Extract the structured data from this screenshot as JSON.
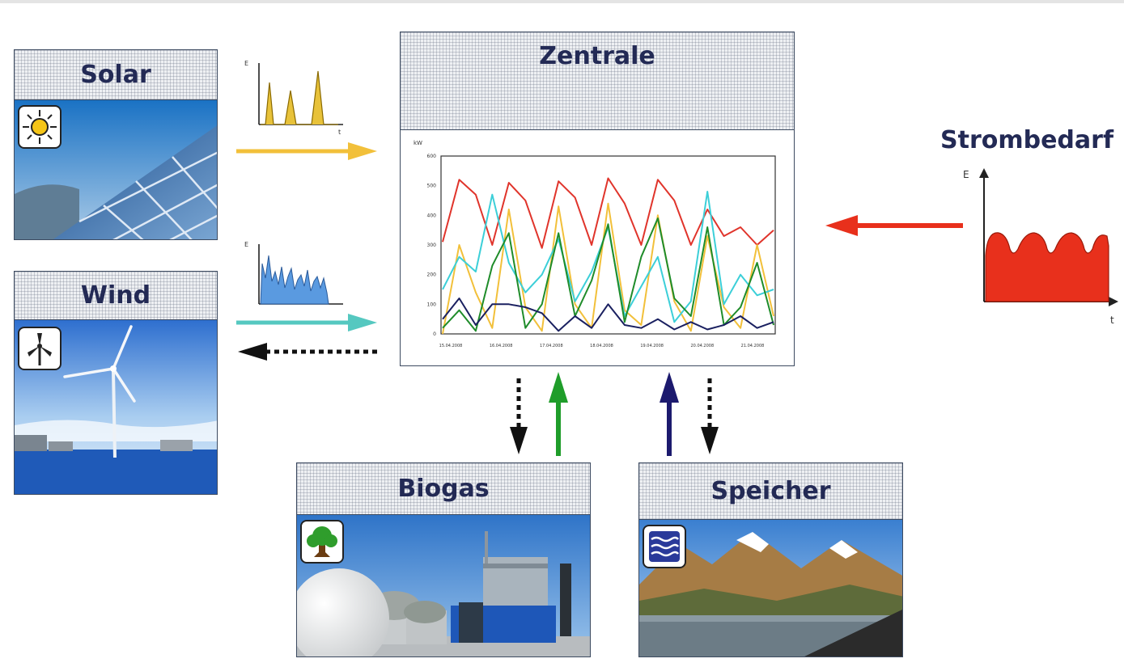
{
  "nodes": {
    "solar": {
      "label": "Solar",
      "icon": "sun-icon"
    },
    "wind": {
      "label": "Wind",
      "icon": "wind-turbine-icon"
    },
    "zentrale": {
      "label": "Zentrale"
    },
    "biogas": {
      "label": "Biogas",
      "icon": "tree-icon"
    },
    "speicher": {
      "label": "Speicher",
      "icon": "water-waves-icon"
    },
    "strombedarf": {
      "label": "Strombedarf",
      "axis_y": "E",
      "axis_x": "t"
    }
  },
  "mini_charts": {
    "solar": {
      "type": "area",
      "axis_y": "E",
      "axis_x": "t",
      "color": "#e8b200"
    },
    "wind": {
      "type": "area",
      "axis_y": "E",
      "axis_x": "t",
      "color": "#4a8fd6"
    }
  },
  "colors": {
    "solar": "#f2c03a",
    "wind": "#55c8c0",
    "demand": "#e8301c",
    "biogas": "#1f9d2a",
    "speicher": "#1c1a6e",
    "control": "#111111"
  },
  "chart_data": {
    "type": "line",
    "ylim": [
      0,
      600
    ],
    "y_ticks": [
      0,
      100,
      200,
      300,
      400,
      500,
      600
    ],
    "x_tick_labels": [
      "15.04.2008",
      "16.04.2008",
      "17.04.2008",
      "18.04.2008",
      "19.04.2008",
      "20.04.2008",
      "21.04.2008"
    ],
    "ylabel": "kW",
    "series": [
      {
        "color": "#e0342b",
        "values": [
          310,
          520,
          470,
          300,
          510,
          450,
          290,
          515,
          460,
          300,
          525,
          440,
          300,
          520,
          450,
          300,
          420,
          330,
          360,
          300,
          350
        ]
      },
      {
        "color": "#f2c03a",
        "values": [
          0,
          300,
          140,
          20,
          420,
          90,
          10,
          430,
          100,
          20,
          440,
          80,
          30,
          400,
          110,
          10,
          330,
          90,
          20,
          300,
          60
        ]
      },
      {
        "color": "#3ccfd8",
        "values": [
          150,
          260,
          210,
          470,
          240,
          140,
          200,
          320,
          110,
          210,
          360,
          60,
          160,
          260,
          40,
          110,
          480,
          100,
          200,
          130,
          150
        ]
      },
      {
        "color": "#1f8c2a",
        "values": [
          20,
          80,
          10,
          230,
          340,
          20,
          100,
          340,
          60,
          180,
          370,
          40,
          260,
          390,
          120,
          60,
          360,
          30,
          90,
          240,
          30
        ]
      },
      {
        "color": "#1a2060",
        "values": [
          50,
          120,
          30,
          100,
          100,
          90,
          70,
          10,
          60,
          20,
          100,
          30,
          20,
          50,
          15,
          40,
          15,
          30,
          60,
          20,
          40
        ]
      }
    ]
  }
}
